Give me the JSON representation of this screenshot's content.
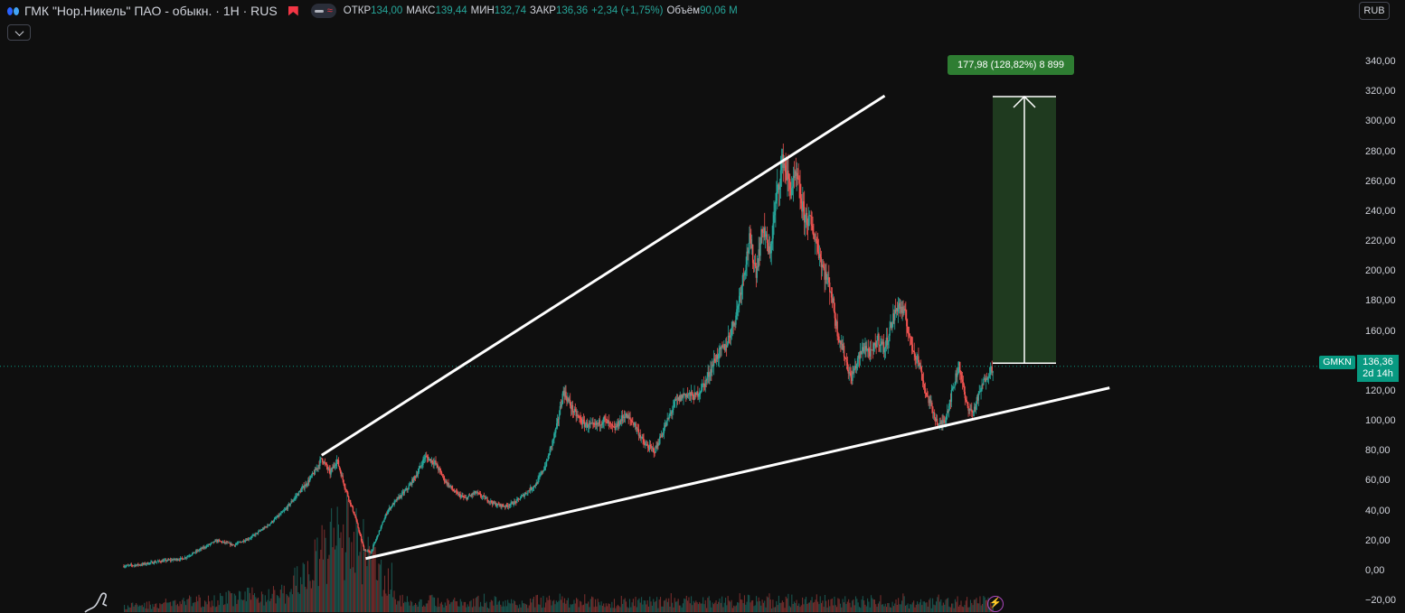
{
  "header": {
    "symbol_title": "ГМК \"Нор.Никель\" ПАО - обыкн. · 1Н · RUS",
    "ohlc": [
      {
        "label": "ОТКР",
        "value": "134,00"
      },
      {
        "label": "МАКС",
        "value": "139,44"
      },
      {
        "label": "МИН",
        "value": "132,74"
      },
      {
        "label": "ЗАКР",
        "value": "136,36"
      }
    ],
    "change": "+2,34 (+1,75%)",
    "volume_label": "Объём",
    "volume_value": "90,06 M"
  },
  "toolbar": {
    "currency": "RUB"
  },
  "icons": {
    "symbol_logo": "nornickel-logo-icon",
    "flag": "flag-icon",
    "collapse": "chevron-down-icon",
    "drawing": "pen-icon",
    "event": "lightning-icon"
  },
  "colors": {
    "background": "#0f0f0f",
    "up": "#26a69a",
    "down": "#ef5350",
    "trendline": "#ffffff",
    "measure_fill": "#1f3a1f",
    "measure_label": "#2e7d32",
    "price_tag": "#089981"
  },
  "price_tag": {
    "ticker": "GMKN",
    "price": "136,36",
    "countdown": "2d 14h"
  },
  "measurement": {
    "label": "177,98 (128,82%) 8 899"
  },
  "chart_data": {
    "type": "candlestick",
    "y_axis": {
      "ticks": [
        "340,00",
        "320,00",
        "300,00",
        "280,00",
        "260,00",
        "240,00",
        "220,00",
        "200,00",
        "180,00",
        "160,00",
        "140,00",
        "120,00",
        "100,00",
        "80,00",
        "60,00",
        "40,00",
        "20,00",
        "0,00",
        "−20,00"
      ],
      "range": [
        -22,
        350
      ]
    },
    "last_price": 136.36,
    "price_path": [
      [
        0,
        3
      ],
      [
        10,
        4
      ],
      [
        20,
        6
      ],
      [
        35,
        8
      ],
      [
        45,
        14
      ],
      [
        55,
        20
      ],
      [
        65,
        17
      ],
      [
        75,
        22
      ],
      [
        85,
        30
      ],
      [
        95,
        40
      ],
      [
        102,
        50
      ],
      [
        108,
        58
      ],
      [
        113,
        66
      ],
      [
        117,
        75
      ],
      [
        122,
        65
      ],
      [
        126,
        74
      ],
      [
        131,
        55
      ],
      [
        137,
        35
      ],
      [
        142,
        14
      ],
      [
        146,
        12
      ],
      [
        151,
        26
      ],
      [
        156,
        40
      ],
      [
        162,
        48
      ],
      [
        168,
        55
      ],
      [
        174,
        66
      ],
      [
        178,
        76
      ],
      [
        184,
        72
      ],
      [
        190,
        60
      ],
      [
        196,
        52
      ],
      [
        202,
        48
      ],
      [
        208,
        52
      ],
      [
        214,
        48
      ],
      [
        220,
        44
      ],
      [
        226,
        43
      ],
      [
        232,
        46
      ],
      [
        238,
        52
      ],
      [
        244,
        58
      ],
      [
        250,
        72
      ],
      [
        256,
        96
      ],
      [
        260,
        120
      ],
      [
        266,
        106
      ],
      [
        272,
        98
      ],
      [
        278,
        96
      ],
      [
        284,
        101
      ],
      [
        290,
        94
      ],
      [
        296,
        104
      ],
      [
        302,
        98
      ],
      [
        308,
        84
      ],
      [
        314,
        80
      ],
      [
        320,
        96
      ],
      [
        326,
        112
      ],
      [
        332,
        118
      ],
      [
        338,
        116
      ],
      [
        344,
        126
      ],
      [
        350,
        142
      ],
      [
        356,
        150
      ],
      [
        362,
        170
      ],
      [
        366,
        195
      ],
      [
        370,
        220
      ],
      [
        374,
        200
      ],
      [
        378,
        230
      ],
      [
        382,
        210
      ],
      [
        386,
        250
      ],
      [
        390,
        275
      ],
      [
        394,
        255
      ],
      [
        398,
        262
      ],
      [
        402,
        238
      ],
      [
        406,
        232
      ],
      [
        410,
        218
      ],
      [
        414,
        200
      ],
      [
        418,
        188
      ],
      [
        422,
        160
      ],
      [
        426,
        145
      ],
      [
        430,
        128
      ],
      [
        434,
        140
      ],
      [
        438,
        150
      ],
      [
        442,
        144
      ],
      [
        446,
        155
      ],
      [
        450,
        148
      ],
      [
        454,
        165
      ],
      [
        458,
        178
      ],
      [
        462,
        170
      ],
      [
        466,
        150
      ],
      [
        470,
        140
      ],
      [
        474,
        120
      ],
      [
        478,
        108
      ],
      [
        482,
        96
      ],
      [
        486,
        102
      ],
      [
        490,
        120
      ],
      [
        494,
        138
      ],
      [
        498,
        112
      ],
      [
        502,
        105
      ],
      [
        506,
        118
      ],
      [
        510,
        130
      ],
      [
        514,
        136
      ]
    ],
    "volume_note": "volume histogram at bottom",
    "trendlines": [
      {
        "name": "upper",
        "from": [
          117,
          77
        ],
        "to": [
          450,
          317
        ]
      },
      {
        "name": "lower",
        "from": [
          143,
          8
        ],
        "to": [
          583,
          122
        ]
      }
    ],
    "measurement": {
      "from_price": 138.5,
      "to_price": 316.5,
      "delta": 177.98,
      "percent": 128.82,
      "bars": 8899
    }
  }
}
